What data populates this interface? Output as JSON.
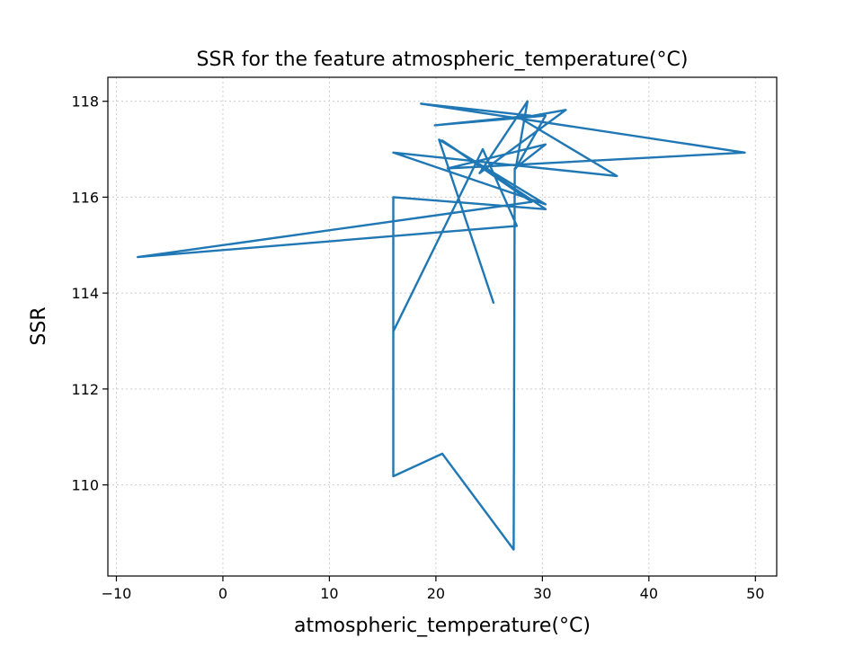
{
  "chart_data": {
    "type": "line",
    "title": "SSR for the feature atmospheric_temperature(°C)",
    "xlabel": "atmospheric_temperature(°C)",
    "ylabel": "SSR",
    "xlim": [
      -10.8,
      52.0
    ],
    "ylim": [
      108.1,
      118.5
    ],
    "xticks": [
      -10,
      0,
      10,
      20,
      30,
      40,
      50
    ],
    "yticks": [
      110,
      112,
      114,
      116,
      118
    ],
    "grid": true,
    "color": "#1f77b4",
    "series": [
      {
        "x": [
          25.4,
          20.3,
          30.3,
          16.0,
          37.0,
          27.9,
          32.2,
          24.1,
          28.6,
          27.5,
          30.3,
          19.9,
          28.9,
          18.6,
          49.0,
          21.1,
          30.3,
          27.4,
          27.3,
          20.6,
          16.0,
          16.0,
          24.4,
          27.6,
          -8.0,
          29.0,
          20.6,
          30.3,
          16.0,
          16.0
        ],
        "y": [
          113.8,
          117.2,
          115.85,
          116.93,
          116.44,
          117.65,
          117.82,
          116.5,
          118.0,
          116.6,
          117.7,
          117.5,
          117.7,
          117.95,
          116.93,
          116.6,
          117.1,
          116.6,
          108.65,
          110.65,
          110.18,
          113.2,
          117.0,
          115.4,
          114.75,
          115.9,
          117.18,
          115.75,
          116.0,
          110.18
        ]
      }
    ]
  }
}
